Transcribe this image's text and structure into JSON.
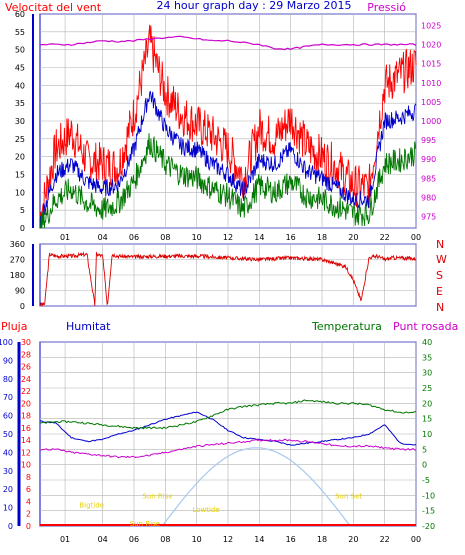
{
  "header": {
    "left_label": "Velocitat del vent",
    "title": "24 hour graph day : 29 Marzo 2015",
    "right_label": "Pressió"
  },
  "colors": {
    "wind_gust": "#ff0000",
    "wind_avg": "#0000cc",
    "wind_low": "#007700",
    "pressure": "#cc00cc",
    "direction": "#dd0000",
    "rain": "#ff0000",
    "humidity": "#0000cc",
    "temperature": "#007700",
    "dewpoint": "#cc00cc",
    "solar": "#a8c8f0",
    "sun_labels": "#e8d000",
    "frame": "#0000cc",
    "grid": "#b4b4b4",
    "axis_text": "#000000"
  },
  "chart_data": [
    {
      "type": "line",
      "name": "wind_pressure",
      "x_ticks": [
        "01",
        "04",
        "06",
        "08",
        "10",
        "12",
        "14",
        "16",
        "18",
        "20",
        "22",
        "00"
      ],
      "y_left_ticks": [
        "0",
        "5",
        "10",
        "15",
        "20",
        "25",
        "30",
        "35",
        "40",
        "45",
        "50",
        "55",
        "60"
      ],
      "y_left_range": [
        0,
        60
      ],
      "y_right_ticks": [
        "975",
        "980",
        "985",
        "990",
        "995",
        "1000",
        "1005",
        "1010",
        "1015",
        "1020",
        "1025"
      ],
      "y_right_range": [
        972,
        1028
      ],
      "grid": true,
      "x_hours": [
        0,
        1,
        2,
        3,
        4,
        5,
        6,
        7,
        8,
        9,
        10,
        11,
        12,
        13,
        14,
        15,
        16,
        17,
        18,
        19,
        20,
        21,
        22,
        23,
        24
      ],
      "series": [
        {
          "color_key": "wind_gust",
          "axis": "left",
          "values": [
            3,
            22,
            27,
            19,
            18,
            17,
            32,
            52,
            38,
            32,
            29,
            26,
            22,
            14,
            28,
            25,
            31,
            23,
            20,
            17,
            12,
            11,
            40,
            43,
            46
          ]
        },
        {
          "color_key": "wind_avg",
          "axis": "left",
          "values": [
            2,
            15,
            18,
            13,
            11,
            12,
            22,
            38,
            28,
            23,
            22,
            18,
            15,
            10,
            19,
            18,
            22,
            16,
            14,
            11,
            8,
            8,
            30,
            31,
            33
          ]
        },
        {
          "color_key": "wind_low",
          "axis": "left",
          "values": [
            0,
            8,
            11,
            7,
            5,
            7,
            13,
            24,
            18,
            15,
            14,
            11,
            9,
            5,
            12,
            10,
            13,
            9,
            8,
            6,
            4,
            4,
            18,
            19,
            21
          ]
        },
        {
          "color_key": "pressure",
          "axis": "right",
          "values": [
            1020,
            1020,
            1020,
            1020.5,
            1021,
            1020.8,
            1021,
            1021.5,
            1021.8,
            1022,
            1021.5,
            1021,
            1021,
            1020.5,
            1020,
            1019,
            1018.8,
            1019.5,
            1020,
            1020,
            1020,
            1020,
            1020,
            1020,
            1020
          ]
        }
      ]
    },
    {
      "type": "line",
      "name": "wind_direction",
      "y_left_ticks": [
        "0",
        "90",
        "180",
        "270",
        "360"
      ],
      "y_left_range": [
        0,
        360
      ],
      "y_right_ticks": [
        "N",
        "W",
        "S",
        "E",
        "N"
      ],
      "grid": true,
      "x_hours": [
        0,
        0.3,
        0.6,
        1,
        2,
        3,
        3.5,
        3.6,
        4,
        4.3,
        4.6,
        5,
        6,
        8,
        10,
        12,
        14,
        16,
        18,
        19.5,
        20,
        20.5,
        21,
        21.5,
        22,
        22.5,
        24
      ],
      "series": [
        {
          "color_key": "direction",
          "values": [
            10,
            10,
            300,
            290,
            290,
            300,
            5,
            300,
            290,
            0,
            300,
            290,
            285,
            290,
            290,
            280,
            270,
            280,
            270,
            230,
            150,
            30,
            280,
            290,
            270,
            280,
            275
          ]
        }
      ]
    },
    {
      "type": "line",
      "name": "humidity_temperature",
      "legend": [
        "Pluja",
        "Humitat",
        "Temperatura",
        "Punt rosada"
      ],
      "y_rain_ticks": [
        "0",
        "10",
        "20",
        "30",
        "40",
        "50",
        "60",
        "70",
        "80",
        "90",
        "100"
      ],
      "y_rain_range": [
        0,
        100
      ],
      "y_hum_ticks": [
        "0",
        "2",
        "4",
        "6",
        "8",
        "10",
        "12",
        "14",
        "16",
        "18",
        "20",
        "22",
        "24",
        "26",
        "28",
        "30"
      ],
      "y_hum_range": [
        0,
        30
      ],
      "y_temp_ticks": [
        "-20",
        "-15",
        "-10",
        "-5",
        "0",
        "5",
        "10",
        "15",
        "20",
        "25",
        "30",
        "35",
        "40"
      ],
      "y_temp_range": [
        -20,
        40
      ],
      "grid": true,
      "x_hours": [
        0,
        1,
        2,
        3,
        4,
        5,
        6,
        7,
        8,
        9,
        10,
        11,
        12,
        13,
        14,
        15,
        16,
        17,
        18,
        19,
        20,
        21,
        22,
        23,
        24
      ],
      "series": [
        {
          "name": "Humitat",
          "color_key": "humidity",
          "values": [
            57,
            56,
            48,
            46,
            47,
            50,
            52,
            55,
            58,
            60,
            62,
            58,
            52,
            48,
            47,
            46,
            44,
            45,
            46,
            47,
            48,
            50,
            55,
            45,
            44
          ]
        },
        {
          "name": "Temperatura",
          "color_key": "temperature",
          "values": [
            13.5,
            14,
            14,
            13.5,
            13,
            12.5,
            12,
            12,
            12,
            13,
            14,
            16,
            18,
            19,
            19.5,
            20,
            20,
            21,
            20.5,
            20,
            20,
            19.5,
            18,
            17,
            17
          ]
        },
        {
          "name": "Punt rosada",
          "color_key": "dewpoint",
          "values": [
            5,
            5,
            4,
            3.5,
            3,
            2.5,
            2.5,
            3,
            4,
            5,
            6,
            6.5,
            7,
            7.5,
            8,
            8,
            8,
            7.5,
            7,
            6,
            6,
            6,
            5.5,
            5,
            5
          ]
        }
      ],
      "solar": {
        "color_key": "solar",
        "start_hour": 7.8,
        "peak_hour": 13.8,
        "end_hour": 19.8,
        "peak_temp_units": 5.5
      },
      "annotations": [
        {
          "text": "Sun Rise",
          "hour": 7.5,
          "temp_units": -11
        },
        {
          "text": "Sun Set",
          "hour": 19.7,
          "temp_units": -11
        },
        {
          "text": "Sun Rise",
          "hour": 6.7,
          "temp_units": -20
        },
        {
          "text": "Lowtide",
          "hour": 10.6,
          "temp_units": -15.5
        },
        {
          "text": "Bigtide",
          "hour": 3.3,
          "temp_units": -14
        }
      ]
    }
  ]
}
